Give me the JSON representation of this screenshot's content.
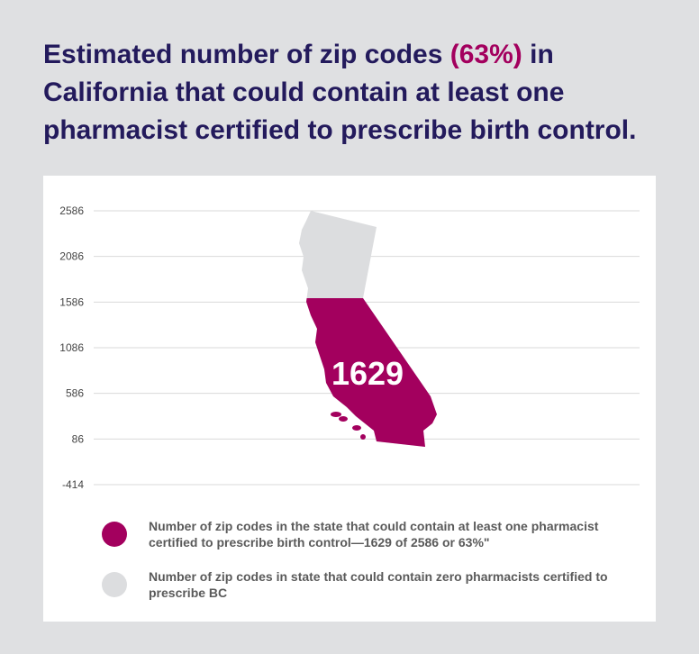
{
  "title": {
    "before": "Estimated number of zip codes ",
    "highlight": "(63%)",
    "after": " in California that could contain at least one pharmacist certified to prescribe birth control."
  },
  "chart_data": {
    "type": "pictogram",
    "ylim": [
      -414,
      2586
    ],
    "yticks": [
      2586,
      2086,
      1586,
      1086,
      586,
      86,
      -414
    ],
    "grid": true,
    "total": 2586,
    "value": 1629,
    "value_label": "1629",
    "percent": 63,
    "colors": {
      "filled": "#a3005e",
      "empty": "#dcdddf"
    },
    "legend": [
      {
        "label": "Number of zip codes in the state that could contain at least one pharmacist certified to prescribe birth control—1629 of 2586 or 63%\"",
        "color": "#a3005e"
      },
      {
        "label": "Number of zip codes in state that could contain zero pharmacists certified to prescribe BC",
        "color": "#dcdddf"
      }
    ]
  }
}
